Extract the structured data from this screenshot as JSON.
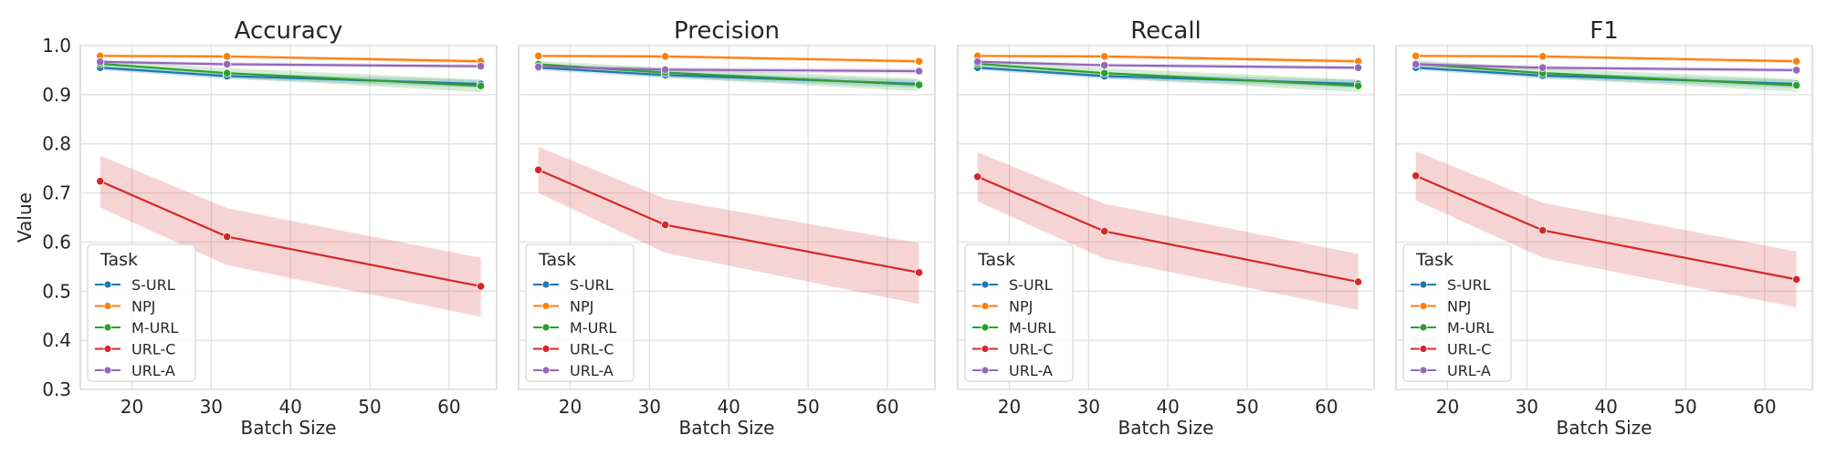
{
  "colors": {
    "S-URL": "#1f77b4",
    "NPJ": "#ff7f0e",
    "M-URL": "#2ca02c",
    "URL-C": "#d62728",
    "URL-A": "#9467bd"
  },
  "chart_data": [
    {
      "type": "line",
      "title": "Accuracy",
      "xlabel": "Batch Size",
      "ylabel": "Value",
      "x": [
        16,
        32,
        64
      ],
      "xlim": [
        13.5,
        66
      ],
      "ylim": [
        0.3,
        1.0
      ],
      "xticks": [
        20,
        30,
        40,
        50,
        60
      ],
      "yticks": [
        0.3,
        0.4,
        0.5,
        0.6,
        0.7,
        0.8,
        0.9,
        1.0
      ],
      "grid": true,
      "legend": {
        "title": "Task",
        "placement": "lower-left"
      },
      "series": [
        {
          "name": "S-URL",
          "values": [
            0.955,
            0.938,
            0.922
          ],
          "ci_low": [
            0.95,
            0.932,
            0.914
          ],
          "ci_high": [
            0.96,
            0.944,
            0.93
          ]
        },
        {
          "name": "NPJ",
          "values": [
            0.979,
            0.978,
            0.968
          ],
          "ci_low": [
            0.976,
            0.975,
            0.964
          ],
          "ci_high": [
            0.982,
            0.981,
            0.972
          ]
        },
        {
          "name": "M-URL",
          "values": [
            0.963,
            0.944,
            0.918
          ],
          "ci_low": [
            0.956,
            0.934,
            0.905
          ],
          "ci_high": [
            0.97,
            0.954,
            0.931
          ]
        },
        {
          "name": "URL-C",
          "values": [
            0.724,
            0.611,
            0.51
          ],
          "ci_low": [
            0.67,
            0.553,
            0.448
          ],
          "ci_high": [
            0.776,
            0.669,
            0.568
          ]
        },
        {
          "name": "URL-A",
          "values": [
            0.967,
            0.962,
            0.958
          ],
          "ci_low": [
            0.964,
            0.958,
            0.954
          ],
          "ci_high": [
            0.97,
            0.966,
            0.962
          ]
        }
      ]
    },
    {
      "type": "line",
      "title": "Precision",
      "xlabel": "Batch Size",
      "ylabel": "",
      "x": [
        16,
        32,
        64
      ],
      "xlim": [
        13.5,
        66
      ],
      "ylim": [
        0.3,
        1.0
      ],
      "xticks": [
        20,
        30,
        40,
        50,
        60
      ],
      "yticks": [
        0.3,
        0.4,
        0.5,
        0.6,
        0.7,
        0.8,
        0.9,
        1.0
      ],
      "grid": true,
      "legend": {
        "title": "Task",
        "placement": "lower-left"
      },
      "series": [
        {
          "name": "S-URL",
          "values": [
            0.955,
            0.94,
            0.922
          ],
          "ci_low": [
            0.95,
            0.934,
            0.914
          ],
          "ci_high": [
            0.96,
            0.946,
            0.93
          ]
        },
        {
          "name": "NPJ",
          "values": [
            0.979,
            0.978,
            0.968
          ],
          "ci_low": [
            0.976,
            0.975,
            0.964
          ],
          "ci_high": [
            0.982,
            0.981,
            0.972
          ]
        },
        {
          "name": "M-URL",
          "values": [
            0.962,
            0.945,
            0.92
          ],
          "ci_low": [
            0.955,
            0.935,
            0.907
          ],
          "ci_high": [
            0.969,
            0.955,
            0.933
          ]
        },
        {
          "name": "URL-C",
          "values": [
            0.747,
            0.635,
            0.538
          ],
          "ci_low": [
            0.7,
            0.578,
            0.474
          ],
          "ci_high": [
            0.794,
            0.688,
            0.598
          ]
        },
        {
          "name": "URL-A",
          "values": [
            0.957,
            0.951,
            0.948
          ],
          "ci_low": [
            0.953,
            0.946,
            0.943
          ],
          "ci_high": [
            0.961,
            0.956,
            0.953
          ]
        }
      ]
    },
    {
      "type": "line",
      "title": "Recall",
      "xlabel": "Batch Size",
      "ylabel": "",
      "x": [
        16,
        32,
        64
      ],
      "xlim": [
        13.5,
        66
      ],
      "ylim": [
        0.3,
        1.0
      ],
      "xticks": [
        20,
        30,
        40,
        50,
        60
      ],
      "yticks": [
        0.3,
        0.4,
        0.5,
        0.6,
        0.7,
        0.8,
        0.9,
        1.0
      ],
      "grid": true,
      "legend": {
        "title": "Task",
        "placement": "lower-left"
      },
      "series": [
        {
          "name": "S-URL",
          "values": [
            0.955,
            0.938,
            0.922
          ],
          "ci_low": [
            0.95,
            0.932,
            0.914
          ],
          "ci_high": [
            0.96,
            0.944,
            0.93
          ]
        },
        {
          "name": "NPJ",
          "values": [
            0.979,
            0.978,
            0.968
          ],
          "ci_low": [
            0.976,
            0.975,
            0.964
          ],
          "ci_high": [
            0.982,
            0.981,
            0.972
          ]
        },
        {
          "name": "M-URL",
          "values": [
            0.963,
            0.944,
            0.918
          ],
          "ci_low": [
            0.956,
            0.934,
            0.905
          ],
          "ci_high": [
            0.97,
            0.954,
            0.931
          ]
        },
        {
          "name": "URL-C",
          "values": [
            0.733,
            0.622,
            0.519
          ],
          "ci_low": [
            0.683,
            0.566,
            0.462
          ],
          "ci_high": [
            0.783,
            0.678,
            0.576
          ]
        },
        {
          "name": "URL-A",
          "values": [
            0.967,
            0.96,
            0.955
          ],
          "ci_low": [
            0.964,
            0.956,
            0.951
          ],
          "ci_high": [
            0.97,
            0.964,
            0.959
          ]
        }
      ]
    },
    {
      "type": "line",
      "title": "F1",
      "xlabel": "Batch Size",
      "ylabel": "",
      "x": [
        16,
        32,
        64
      ],
      "xlim": [
        13.5,
        66
      ],
      "ylim": [
        0.3,
        1.0
      ],
      "xticks": [
        20,
        30,
        40,
        50,
        60
      ],
      "yticks": [
        0.3,
        0.4,
        0.5,
        0.6,
        0.7,
        0.8,
        0.9,
        1.0
      ],
      "grid": true,
      "legend": {
        "title": "Task",
        "placement": "lower-left"
      },
      "series": [
        {
          "name": "S-URL",
          "values": [
            0.955,
            0.939,
            0.922
          ],
          "ci_low": [
            0.95,
            0.933,
            0.914
          ],
          "ci_high": [
            0.96,
            0.945,
            0.93
          ]
        },
        {
          "name": "NPJ",
          "values": [
            0.979,
            0.978,
            0.968
          ],
          "ci_low": [
            0.976,
            0.975,
            0.964
          ],
          "ci_high": [
            0.982,
            0.981,
            0.972
          ]
        },
        {
          "name": "M-URL",
          "values": [
            0.963,
            0.944,
            0.919
          ],
          "ci_low": [
            0.956,
            0.934,
            0.906
          ],
          "ci_high": [
            0.97,
            0.954,
            0.932
          ]
        },
        {
          "name": "URL-C",
          "values": [
            0.735,
            0.624,
            0.524
          ],
          "ci_low": [
            0.685,
            0.568,
            0.467
          ],
          "ci_high": [
            0.785,
            0.68,
            0.581
          ]
        },
        {
          "name": "URL-A",
          "values": [
            0.962,
            0.955,
            0.95
          ],
          "ci_low": [
            0.958,
            0.951,
            0.946
          ],
          "ci_high": [
            0.966,
            0.959,
            0.954
          ]
        }
      ]
    }
  ]
}
